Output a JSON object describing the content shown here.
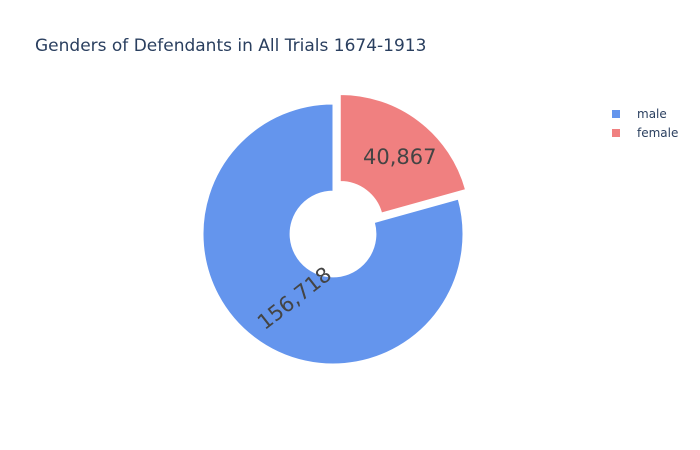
{
  "chart_data": {
    "type": "pie",
    "title": "Genders of Defendants in All Trials 1674-1913",
    "hole": 0.33,
    "pulled_slice": "female",
    "legend_position": "top-right",
    "series": [
      {
        "name": "male",
        "value": 156718,
        "label": "156,718",
        "color": "#6495ed"
      },
      {
        "name": "female",
        "value": 40867,
        "label": "40,867",
        "color": "#f08080"
      }
    ]
  }
}
